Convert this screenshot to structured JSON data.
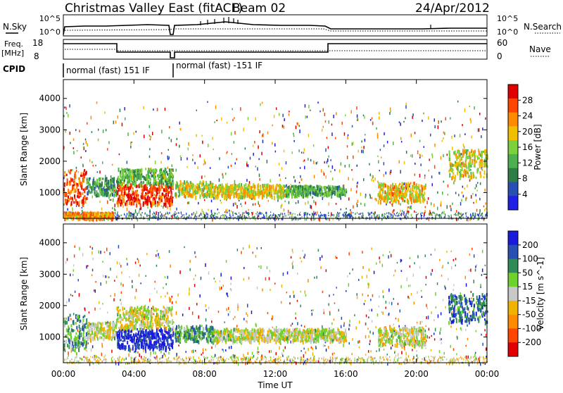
{
  "header": {
    "title": "Christmas Valley East (fitACF)",
    "beam": "Beam 02",
    "date": "24/Apr/2012"
  },
  "top_panels": {
    "nsky_label": "N.Sky",
    "nsky_ticks": [
      "10^5",
      "10^0"
    ],
    "nsearch_label": "N.Search",
    "nsearch_ticks": [
      "10^5",
      "10^0"
    ],
    "freq_label_1": "Freq.",
    "freq_label_2": "[MHz]",
    "freq_ticks": [
      "18",
      "8"
    ],
    "nave_label": "Nave",
    "nave_ticks": [
      "60",
      "0"
    ],
    "cpid_label": "CPID",
    "cpid_segments": [
      "normal (fast) 151 IF",
      "normal (fast) -151 IF"
    ]
  },
  "colors": {
    "power": [
      "#1f1fe6",
      "#2850b4",
      "#2e7d46",
      "#4caf50",
      "#7cd03c",
      "#f0c000",
      "#ff8c00",
      "#ff4500",
      "#e00000"
    ],
    "velocity": [
      "#1a1adc",
      "#2850b4",
      "#2e8b57",
      "#6fd12c",
      "#c8c8c8",
      "#f0b400",
      "#ff8c00",
      "#ff4500",
      "#e00000"
    ]
  },
  "chart_data": [
    {
      "type": "heatmap",
      "title": "Power",
      "xlabel": "",
      "ylabel": "Slant Range [km]",
      "x_ticks": [
        "00:00",
        "04:00",
        "08:00",
        "12:00",
        "16:00",
        "20:00",
        "00:00"
      ],
      "xlim_hours": [
        0,
        24
      ],
      "y_ticks": [
        1000,
        2000,
        3000,
        4000
      ],
      "ylim": [
        180,
        4600
      ],
      "colorbar_label": "Power [dB]",
      "colorbar_ticks": [
        4,
        8,
        12,
        16,
        20,
        24,
        28
      ],
      "colorbar_range": [
        0,
        30
      ],
      "features": [
        {
          "t0": 0.0,
          "t1": 1.3,
          "r0": 650,
          "r1": 1750,
          "level": 0.82
        },
        {
          "t0": 1.3,
          "t1": 3.0,
          "r0": 950,
          "r1": 1500,
          "level": 0.35
        },
        {
          "t0": 3.0,
          "t1": 6.2,
          "r0": 650,
          "r1": 1300,
          "level": 0.88
        },
        {
          "t0": 3.0,
          "t1": 6.2,
          "r0": 1300,
          "r1": 1800,
          "level": 0.4
        },
        {
          "t0": 6.3,
          "t1": 8.5,
          "r0": 900,
          "r1": 1400,
          "level": 0.55
        },
        {
          "t0": 8.5,
          "t1": 12.5,
          "r0": 900,
          "r1": 1300,
          "level": 0.6
        },
        {
          "t0": 12.5,
          "t1": 16.0,
          "r0": 950,
          "r1": 1250,
          "level": 0.38
        },
        {
          "t0": 17.8,
          "t1": 20.5,
          "r0": 750,
          "r1": 1350,
          "level": 0.62
        },
        {
          "t0": 21.8,
          "t1": 24.0,
          "r0": 1500,
          "r1": 2400,
          "level": 0.55
        },
        {
          "t0": 0.0,
          "t1": 2.8,
          "r0": 220,
          "r1": 400,
          "level": 0.7
        }
      ]
    },
    {
      "type": "heatmap",
      "title": "Velocity",
      "xlabel": "Time UT",
      "ylabel": "Slant Range [km]",
      "x_ticks": [
        "00:00",
        "04:00",
        "08:00",
        "12:00",
        "16:00",
        "20:00",
        "00:00"
      ],
      "xlim_hours": [
        0,
        24
      ],
      "y_ticks": [
        1000,
        2000,
        3000,
        4000
      ],
      "ylim": [
        180,
        4600
      ],
      "colorbar_label": "Velocity [m s^-1]",
      "colorbar_ticks": [
        200,
        100,
        50,
        15,
        -15,
        -50,
        -100,
        -200
      ],
      "features": [
        {
          "t0": 0.0,
          "t1": 1.3,
          "r0": 650,
          "r1": 1750,
          "level": 0.3
        },
        {
          "t0": 1.3,
          "t1": 3.0,
          "r0": 950,
          "r1": 1500,
          "level": 0.5
        },
        {
          "t0": 3.0,
          "t1": 6.2,
          "r0": 650,
          "r1": 1300,
          "level": 0.05
        },
        {
          "t0": 3.0,
          "t1": 6.2,
          "r0": 1300,
          "r1": 2000,
          "level": 0.5
        },
        {
          "t0": 6.3,
          "t1": 8.5,
          "r0": 900,
          "r1": 1400,
          "level": 0.3
        },
        {
          "t0": 8.5,
          "t1": 16.0,
          "r0": 900,
          "r1": 1300,
          "level": 0.5
        },
        {
          "t0": 17.8,
          "t1": 20.5,
          "r0": 750,
          "r1": 1350,
          "level": 0.5
        },
        {
          "t0": 21.8,
          "t1": 24.0,
          "r0": 1500,
          "r1": 2400,
          "level": 0.2
        }
      ]
    }
  ]
}
